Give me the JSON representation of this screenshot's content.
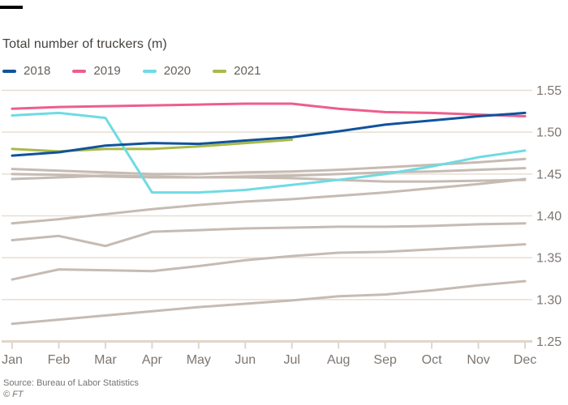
{
  "header": {
    "title": "Total number of truckers (m)"
  },
  "legend": [
    {
      "label": "2018",
      "color": "#11539b"
    },
    {
      "label": "2019",
      "color": "#ed5e8d"
    },
    {
      "label": "2020",
      "color": "#6fdbe3"
    },
    {
      "label": "2021",
      "color": "#a8ba4a"
    }
  ],
  "footer": {
    "source": "Source: Bureau of Labor Statistics",
    "credit": "© FT"
  },
  "chart_data": {
    "type": "line",
    "title": "Total number of truckers (m)",
    "xlabel": "",
    "ylabel": "",
    "x": [
      "Jan",
      "Feb",
      "Mar",
      "Apr",
      "May",
      "Jun",
      "Jul",
      "Aug",
      "Sep",
      "Oct",
      "Nov",
      "Dec"
    ],
    "ylim": [
      1.25,
      1.55
    ],
    "yticks": [
      1.25,
      1.3,
      1.35,
      1.4,
      1.45,
      1.5,
      1.55
    ],
    "grid": true,
    "legend_position": "top-left",
    "colors": {
      "grid": "#e7ded4",
      "axis": "#e0d6ca",
      "axis_label": "#7d7671",
      "unlabeled_series": "#c6bbb3"
    },
    "series": [
      {
        "name": "unlabeled-year-1",
        "color": "#c6bbb3",
        "values": [
          1.271,
          1.276,
          1.281,
          1.286,
          1.291,
          1.295,
          1.299,
          1.304,
          1.306,
          1.311,
          1.317,
          1.322
        ]
      },
      {
        "name": "unlabeled-year-2",
        "color": "#c6bbb3",
        "values": [
          1.324,
          1.336,
          1.335,
          1.334,
          1.34,
          1.347,
          1.352,
          1.356,
          1.357,
          1.36,
          1.363,
          1.366
        ]
      },
      {
        "name": "unlabeled-year-3",
        "color": "#c6bbb3",
        "values": [
          1.371,
          1.376,
          1.364,
          1.381,
          1.383,
          1.385,
          1.386,
          1.387,
          1.387,
          1.388,
          1.39,
          1.391
        ]
      },
      {
        "name": "unlabeled-year-4",
        "color": "#c6bbb3",
        "values": [
          1.391,
          1.396,
          1.402,
          1.408,
          1.413,
          1.417,
          1.42,
          1.424,
          1.428,
          1.433,
          1.438,
          1.444
        ]
      },
      {
        "name": "unlabeled-year-5",
        "color": "#c6bbb3",
        "values": [
          1.444,
          1.446,
          1.448,
          1.447,
          1.446,
          1.446,
          1.445,
          1.443,
          1.441,
          1.441,
          1.442,
          1.443
        ]
      },
      {
        "name": "unlabeled-year-6",
        "color": "#c6bbb3",
        "values": [
          1.45,
          1.449,
          1.447,
          1.446,
          1.446,
          1.447,
          1.448,
          1.45,
          1.452,
          1.453,
          1.455,
          1.457
        ]
      },
      {
        "name": "unlabeled-year-7",
        "color": "#c6bbb3",
        "values": [
          1.456,
          1.454,
          1.452,
          1.45,
          1.45,
          1.452,
          1.453,
          1.455,
          1.458,
          1.461,
          1.464,
          1.468
        ]
      },
      {
        "name": "2021",
        "color": "#a8ba4a",
        "values": [
          1.48,
          1.477,
          1.48,
          1.48,
          1.483,
          1.487,
          1.491,
          null,
          null,
          null,
          null,
          null
        ]
      },
      {
        "name": "2020",
        "color": "#6fdbe3",
        "values": [
          1.52,
          1.523,
          1.517,
          1.428,
          1.428,
          1.431,
          1.437,
          1.443,
          1.45,
          1.459,
          1.47,
          1.478
        ]
      },
      {
        "name": "2019",
        "color": "#ed5e8d",
        "values": [
          1.528,
          1.53,
          1.531,
          1.532,
          1.533,
          1.534,
          1.534,
          1.528,
          1.524,
          1.523,
          1.521,
          1.519
        ]
      },
      {
        "name": "2018",
        "color": "#11539b",
        "values": [
          1.472,
          1.476,
          1.484,
          1.487,
          1.486,
          1.49,
          1.494,
          1.501,
          1.509,
          1.514,
          1.519,
          1.523
        ]
      }
    ]
  }
}
